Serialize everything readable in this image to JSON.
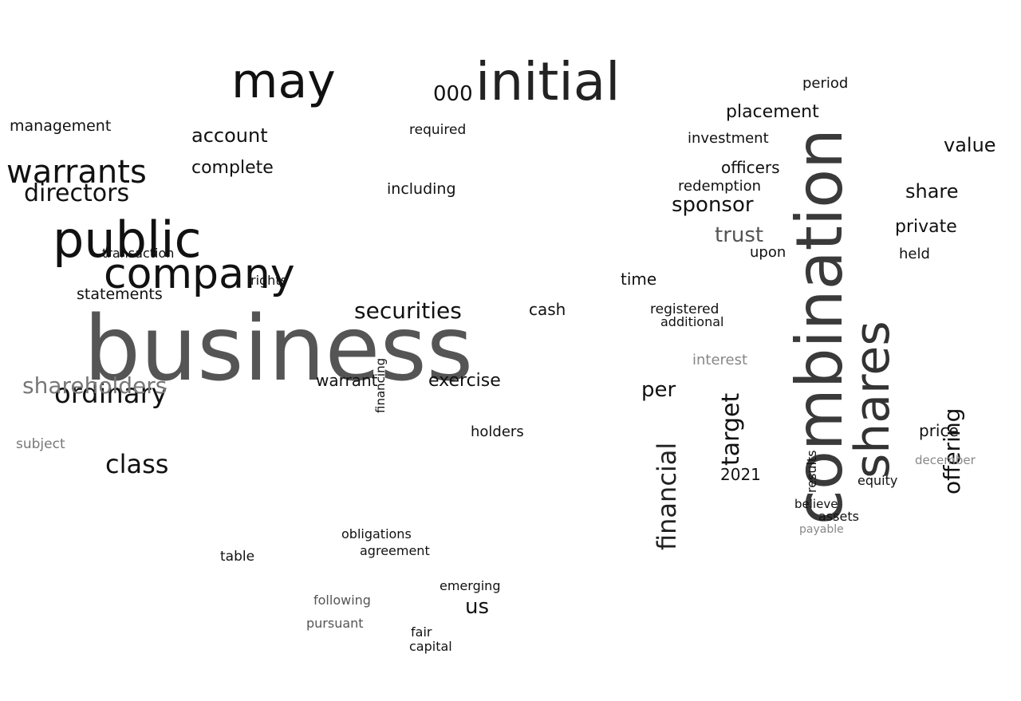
{
  "words": [
    {
      "text": "business",
      "color": "#555555"
    },
    {
      "text": "combination",
      "color": "#3a3a3a"
    },
    {
      "text": "initial",
      "color": "#222222"
    },
    {
      "text": "public",
      "color": "#111111"
    },
    {
      "text": "company",
      "color": "#111111"
    },
    {
      "text": "shares",
      "color": "#333333"
    },
    {
      "text": "may",
      "color": "#111111"
    },
    {
      "text": "warrants",
      "color": "#111111"
    },
    {
      "text": "securities",
      "color": "#111111"
    },
    {
      "text": "ordinary",
      "color": "#111111"
    },
    {
      "text": "shareholders",
      "color": "#777777"
    },
    {
      "text": "directors",
      "color": "#111111"
    },
    {
      "text": "class",
      "color": "#111111"
    },
    {
      "text": "financial",
      "color": "#222222"
    },
    {
      "text": "target",
      "color": "#111111"
    },
    {
      "text": "offering",
      "color": "#111111"
    },
    {
      "text": "account",
      "color": "#111111"
    },
    {
      "text": "trust",
      "color": "#555555"
    },
    {
      "text": "sponsor",
      "color": "#111111"
    },
    {
      "text": "complete",
      "color": "#111111"
    },
    {
      "text": "private",
      "color": "#111111"
    },
    {
      "text": "value",
      "color": "#111111"
    },
    {
      "text": "per",
      "color": "#111111"
    },
    {
      "text": "000",
      "color": "#111111"
    },
    {
      "text": "share",
      "color": "#111111"
    },
    {
      "text": "placement",
      "color": "#111111"
    },
    {
      "text": "officers",
      "color": "#111111"
    },
    {
      "text": "exercise",
      "color": "#111111"
    },
    {
      "text": "holders",
      "color": "#111111"
    },
    {
      "text": "us",
      "color": "#111111"
    },
    {
      "text": "cash",
      "color": "#111111"
    },
    {
      "text": "management",
      "color": "#111111"
    },
    {
      "text": "statements",
      "color": "#111111"
    },
    {
      "text": "including",
      "color": "#111111"
    },
    {
      "text": "time",
      "color": "#111111"
    },
    {
      "text": "price",
      "color": "#111111"
    },
    {
      "text": "2021",
      "color": "#111111"
    },
    {
      "text": "warrant",
      "color": "#111111"
    },
    {
      "text": "interest",
      "color": "#888888"
    },
    {
      "text": "redemption",
      "color": "#111111"
    },
    {
      "text": "period",
      "color": "#111111"
    },
    {
      "text": "investment",
      "color": "#111111"
    },
    {
      "text": "upon",
      "color": "#111111"
    },
    {
      "text": "held",
      "color": "#111111"
    },
    {
      "text": "transaction",
      "color": "#111111"
    },
    {
      "text": "required",
      "color": "#111111"
    },
    {
      "text": "rights",
      "color": "#111111"
    },
    {
      "text": "subject",
      "color": "#777777"
    },
    {
      "text": "financing",
      "color": "#111111"
    },
    {
      "text": "agreement",
      "color": "#111111"
    },
    {
      "text": "obligations",
      "color": "#111111"
    },
    {
      "text": "table",
      "color": "#111111"
    },
    {
      "text": "fair",
      "color": "#111111"
    },
    {
      "text": "capital",
      "color": "#111111"
    },
    {
      "text": "following",
      "color": "#555555"
    },
    {
      "text": "pursuant",
      "color": "#555555"
    },
    {
      "text": "emerging",
      "color": "#111111"
    },
    {
      "text": "registered",
      "color": "#111111"
    },
    {
      "text": "additional",
      "color": "#111111"
    },
    {
      "text": "results",
      "color": "#111111"
    },
    {
      "text": "equity",
      "color": "#111111"
    },
    {
      "text": "december",
      "color": "#888888"
    },
    {
      "text": "assets",
      "color": "#111111"
    },
    {
      "text": "believe",
      "color": "#111111"
    },
    {
      "text": "payable",
      "color": "#888888"
    }
  ]
}
